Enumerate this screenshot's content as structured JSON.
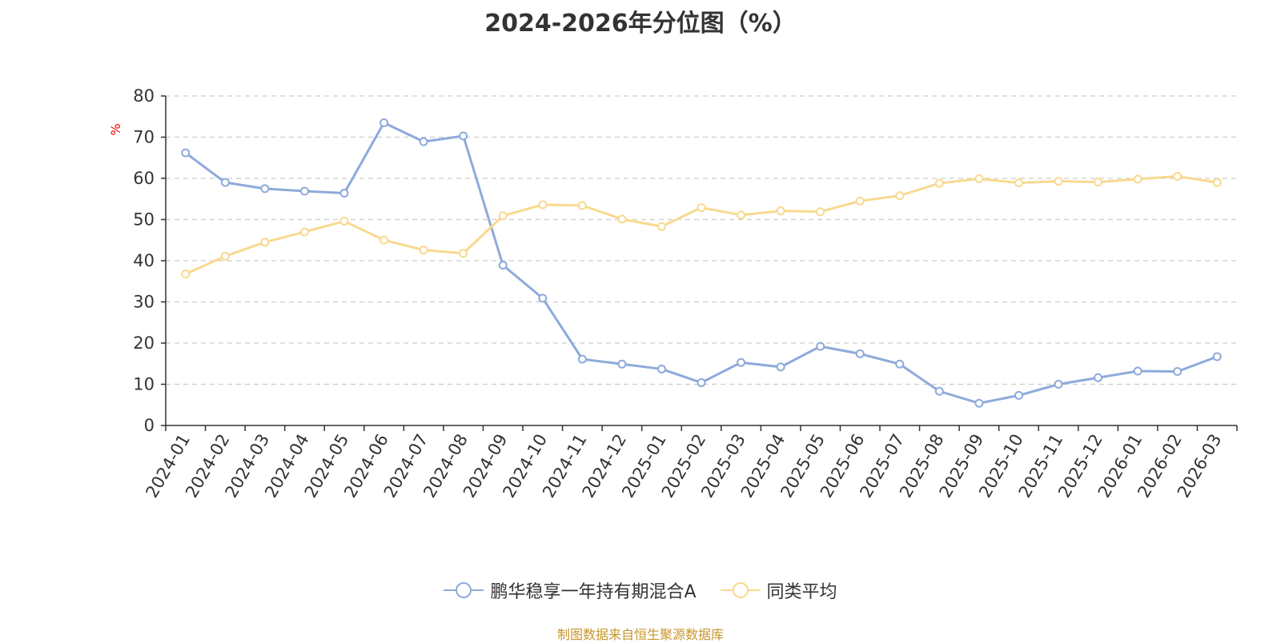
{
  "chart_data": {
    "type": "line",
    "title": "2024-2026年分位图（%）",
    "ylabel": "%",
    "ylim": [
      0,
      80
    ],
    "yticks": [
      0,
      10,
      20,
      30,
      40,
      50,
      60,
      70,
      80
    ],
    "grid": true,
    "legend_position": "bottom",
    "categories": [
      "2024-01",
      "2024-02",
      "2024-03",
      "2024-04",
      "2024-05",
      "2024-06",
      "2024-07",
      "2024-08",
      "2024-09",
      "2024-10",
      "2024-11",
      "2024-12",
      "2025-01",
      "2025-02",
      "2025-03",
      "2025-04",
      "2025-05",
      "2025-06",
      "2025-07",
      "2025-08",
      "2025-09",
      "2025-10",
      "2025-11",
      "2025-12",
      "2026-01",
      "2026-02",
      "2026-03"
    ],
    "series": [
      {
        "name": "鹏华稳享一年持有期混合A",
        "color": "#8eaadb",
        "values": [
          66.2,
          59.0,
          57.5,
          56.9,
          56.4,
          73.5,
          68.9,
          70.3,
          38.9,
          30.9,
          16.1,
          14.9,
          13.7,
          10.4,
          15.3,
          14.2,
          19.2,
          17.4,
          14.9,
          8.3,
          5.4,
          7.3,
          10.0,
          11.6,
          13.2,
          13.1,
          16.7
        ]
      },
      {
        "name": "同类平均",
        "color": "#f9d98f",
        "values": [
          36.8,
          41.1,
          44.5,
          47.0,
          49.6,
          45.0,
          42.6,
          41.8,
          50.9,
          53.6,
          53.4,
          50.1,
          48.3,
          52.9,
          51.1,
          52.1,
          51.9,
          54.5,
          55.8,
          58.8,
          59.9,
          58.9,
          59.3,
          59.1,
          59.8,
          60.5,
          59.0
        ]
      }
    ]
  },
  "source_note": "制图数据来自恒生聚源数据库"
}
